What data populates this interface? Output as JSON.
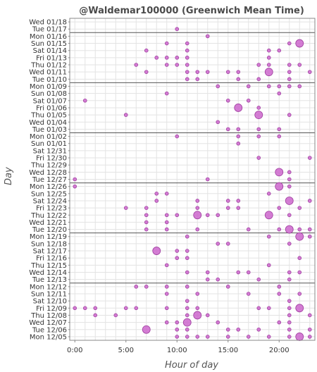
{
  "chart_data": {
    "type": "scatter",
    "title": "@Waldemar100000 (Greenwich Mean Time)",
    "xlabel": "Hour of day",
    "ylabel": "Day",
    "xlim": [
      -0.5,
      23.5
    ],
    "x_ticks": [
      0,
      5,
      10,
      15,
      20
    ],
    "x_tick_labels": [
      "0:00",
      "5:00",
      "10:00",
      "15:00",
      "20:00"
    ],
    "grid": true,
    "marker_color": "#cc66cc",
    "marker_edge_color": "#a040a0",
    "separator_color": "#555555",
    "days": [
      "Wed 01/18",
      "Tue 01/17",
      "Mon 01/16",
      "Sun 01/15",
      "Sat 01/14",
      "Fri 01/13",
      "Thu 01/12",
      "Wed 01/11",
      "Tue 01/10",
      "Mon 01/09",
      "Sun 01/08",
      "Sat 01/07",
      "Fri 01/06",
      "Thu 01/05",
      "Wed 01/04",
      "Tue 01/03",
      "Mon 01/02",
      "Sun 01/01",
      "Sat 12/31",
      "Fri 12/30",
      "Thu 12/29",
      "Wed 12/28",
      "Tue 12/27",
      "Mon 12/26",
      "Sun 12/25",
      "Sat 12/24",
      "Fri 12/23",
      "Thu 12/22",
      "Wed 12/21",
      "Tue 12/20",
      "Mon 12/19",
      "Sun 12/18",
      "Sat 12/17",
      "Fri 12/16",
      "Thu 12/15",
      "Wed 12/14",
      "Tue 12/13",
      "Mon 12/12",
      "Sun 12/11",
      "Sat 12/10",
      "Fri 12/09",
      "Thu 12/08",
      "Wed 12/07",
      "Tue 12/06",
      "Mon 12/05"
    ],
    "week_separators_after": [
      "Mon 01/16",
      "Mon 01/09",
      "Mon 01/02",
      "Mon 12/26",
      "Mon 12/19",
      "Mon 12/12"
    ],
    "points": [
      {
        "day": "Tue 01/17",
        "hour": 10,
        "count": 1
      },
      {
        "day": "Mon 01/16",
        "hour": 13,
        "count": 1
      },
      {
        "day": "Sun 01/15",
        "hour": 9,
        "count": 1
      },
      {
        "day": "Sun 01/15",
        "hour": 11,
        "count": 1
      },
      {
        "day": "Sun 01/15",
        "hour": 21,
        "count": 1
      },
      {
        "day": "Sun 01/15",
        "hour": 22,
        "count": 3
      },
      {
        "day": "Sat 01/14",
        "hour": 7,
        "count": 1
      },
      {
        "day": "Sat 01/14",
        "hour": 11,
        "count": 1
      },
      {
        "day": "Sat 01/14",
        "hour": 19,
        "count": 1
      },
      {
        "day": "Sat 01/14",
        "hour": 20,
        "count": 1
      },
      {
        "day": "Fri 01/13",
        "hour": 8,
        "count": 1
      },
      {
        "day": "Fri 01/13",
        "hour": 9,
        "count": 1
      },
      {
        "day": "Fri 01/13",
        "hour": 10,
        "count": 1
      },
      {
        "day": "Fri 01/13",
        "hour": 11,
        "count": 1
      },
      {
        "day": "Fri 01/13",
        "hour": 19,
        "count": 1
      },
      {
        "day": "Thu 01/12",
        "hour": 6,
        "count": 1
      },
      {
        "day": "Thu 01/12",
        "hour": 9,
        "count": 1
      },
      {
        "day": "Thu 01/12",
        "hour": 10,
        "count": 1
      },
      {
        "day": "Thu 01/12",
        "hour": 11,
        "count": 1
      },
      {
        "day": "Thu 01/12",
        "hour": 18,
        "count": 1
      },
      {
        "day": "Thu 01/12",
        "hour": 19,
        "count": 1
      },
      {
        "day": "Thu 01/12",
        "hour": 21,
        "count": 1
      },
      {
        "day": "Thu 01/12",
        "hour": 22,
        "count": 1
      },
      {
        "day": "Wed 01/11",
        "hour": 7,
        "count": 1
      },
      {
        "day": "Wed 01/11",
        "hour": 11,
        "count": 1
      },
      {
        "day": "Wed 01/11",
        "hour": 12,
        "count": 1
      },
      {
        "day": "Wed 01/11",
        "hour": 13,
        "count": 1
      },
      {
        "day": "Wed 01/11",
        "hour": 15,
        "count": 1
      },
      {
        "day": "Wed 01/11",
        "hour": 16,
        "count": 1
      },
      {
        "day": "Wed 01/11",
        "hour": 19,
        "count": 3
      },
      {
        "day": "Wed 01/11",
        "hour": 21,
        "count": 1
      },
      {
        "day": "Wed 01/11",
        "hour": 23,
        "count": 1
      },
      {
        "day": "Tue 01/10",
        "hour": 11,
        "count": 1
      },
      {
        "day": "Tue 01/10",
        "hour": 12,
        "count": 1
      },
      {
        "day": "Tue 01/10",
        "hour": 16,
        "count": 1
      },
      {
        "day": "Tue 01/10",
        "hour": 18,
        "count": 1
      },
      {
        "day": "Tue 01/10",
        "hour": 21,
        "count": 1
      },
      {
        "day": "Mon 01/09",
        "hour": 14,
        "count": 1
      },
      {
        "day": "Mon 01/09",
        "hour": 17,
        "count": 1
      },
      {
        "day": "Mon 01/09",
        "hour": 19,
        "count": 1
      },
      {
        "day": "Mon 01/09",
        "hour": 20,
        "count": 1
      },
      {
        "day": "Mon 01/09",
        "hour": 21,
        "count": 1
      },
      {
        "day": "Mon 01/09",
        "hour": 22,
        "count": 1
      },
      {
        "day": "Sun 01/08",
        "hour": 9,
        "count": 1
      },
      {
        "day": "Sun 01/08",
        "hour": 20,
        "count": 1
      },
      {
        "day": "Sat 01/07",
        "hour": 1,
        "count": 1
      },
      {
        "day": "Sat 01/07",
        "hour": 15,
        "count": 1
      },
      {
        "day": "Sat 01/07",
        "hour": 17,
        "count": 1
      },
      {
        "day": "Fri 01/06",
        "hour": 16,
        "count": 3
      },
      {
        "day": "Fri 01/06",
        "hour": 18,
        "count": 1
      },
      {
        "day": "Thu 01/05",
        "hour": 5,
        "count": 1
      },
      {
        "day": "Thu 01/05",
        "hour": 18,
        "count": 3
      },
      {
        "day": "Thu 01/05",
        "hour": 21,
        "count": 1
      },
      {
        "day": "Wed 01/04",
        "hour": 14,
        "count": 1
      },
      {
        "day": "Tue 01/03",
        "hour": 15,
        "count": 1
      },
      {
        "day": "Tue 01/03",
        "hour": 16,
        "count": 1
      },
      {
        "day": "Tue 01/03",
        "hour": 18,
        "count": 1
      },
      {
        "day": "Tue 01/03",
        "hour": 20,
        "count": 1
      },
      {
        "day": "Mon 01/02",
        "hour": 10,
        "count": 1
      },
      {
        "day": "Mon 01/02",
        "hour": 16,
        "count": 1
      },
      {
        "day": "Mon 01/02",
        "hour": 18,
        "count": 1
      },
      {
        "day": "Mon 01/02",
        "hour": 20,
        "count": 1
      },
      {
        "day": "Sun 01/01",
        "hour": 16,
        "count": 1
      },
      {
        "day": "Fri 12/30",
        "hour": 18,
        "count": 1
      },
      {
        "day": "Fri 12/30",
        "hour": 23,
        "count": 1
      },
      {
        "day": "Wed 12/28",
        "hour": 20,
        "count": 3
      },
      {
        "day": "Wed 12/28",
        "hour": 21,
        "count": 1
      },
      {
        "day": "Tue 12/27",
        "hour": 0,
        "count": 1
      },
      {
        "day": "Tue 12/27",
        "hour": 13,
        "count": 1
      },
      {
        "day": "Tue 12/27",
        "hour": 21,
        "count": 1
      },
      {
        "day": "Mon 12/26",
        "hour": 0,
        "count": 1
      },
      {
        "day": "Mon 12/26",
        "hour": 20,
        "count": 3
      },
      {
        "day": "Mon 12/26",
        "hour": 21,
        "count": 1
      },
      {
        "day": "Sun 12/25",
        "hour": 8,
        "count": 1
      },
      {
        "day": "Sun 12/25",
        "hour": 9,
        "count": 1
      },
      {
        "day": "Sun 12/25",
        "hour": 19,
        "count": 1
      },
      {
        "day": "Sat 12/24",
        "hour": 8,
        "count": 1
      },
      {
        "day": "Sat 12/24",
        "hour": 12,
        "count": 1
      },
      {
        "day": "Sat 12/24",
        "hour": 15,
        "count": 1
      },
      {
        "day": "Sat 12/24",
        "hour": 16,
        "count": 1
      },
      {
        "day": "Sat 12/24",
        "hour": 21,
        "count": 3
      },
      {
        "day": "Sat 12/24",
        "hour": 23,
        "count": 1
      },
      {
        "day": "Fri 12/23",
        "hour": 5,
        "count": 1
      },
      {
        "day": "Fri 12/23",
        "hour": 7,
        "count": 1
      },
      {
        "day": "Fri 12/23",
        "hour": 12,
        "count": 1
      },
      {
        "day": "Fri 12/23",
        "hour": 15,
        "count": 1
      },
      {
        "day": "Fri 12/23",
        "hour": 16,
        "count": 1
      },
      {
        "day": "Fri 12/23",
        "hour": 20,
        "count": 1
      },
      {
        "day": "Fri 12/23",
        "hour": 22,
        "count": 1
      },
      {
        "day": "Thu 12/22",
        "hour": 7,
        "count": 1
      },
      {
        "day": "Thu 12/22",
        "hour": 9,
        "count": 1
      },
      {
        "day": "Thu 12/22",
        "hour": 10,
        "count": 1
      },
      {
        "day": "Thu 12/22",
        "hour": 12,
        "count": 3
      },
      {
        "day": "Thu 12/22",
        "hour": 13,
        "count": 1
      },
      {
        "day": "Thu 12/22",
        "hour": 14,
        "count": 1
      },
      {
        "day": "Thu 12/22",
        "hour": 19,
        "count": 3
      },
      {
        "day": "Thu 12/22",
        "hour": 21,
        "count": 1
      },
      {
        "day": "Wed 12/21",
        "hour": 7,
        "count": 1
      },
      {
        "day": "Wed 12/21",
        "hour": 9,
        "count": 1
      },
      {
        "day": "Tue 12/20",
        "hour": 7,
        "count": 1
      },
      {
        "day": "Tue 12/20",
        "hour": 9,
        "count": 1
      },
      {
        "day": "Tue 12/20",
        "hour": 12,
        "count": 1
      },
      {
        "day": "Tue 12/20",
        "hour": 17,
        "count": 1
      },
      {
        "day": "Tue 12/20",
        "hour": 20,
        "count": 1
      },
      {
        "day": "Tue 12/20",
        "hour": 21,
        "count": 3
      },
      {
        "day": "Tue 12/20",
        "hour": 22,
        "count": 1
      },
      {
        "day": "Tue 12/20",
        "hour": 23,
        "count": 1
      },
      {
        "day": "Mon 12/19",
        "hour": 11,
        "count": 1
      },
      {
        "day": "Mon 12/19",
        "hour": 19,
        "count": 1
      },
      {
        "day": "Mon 12/19",
        "hour": 22,
        "count": 3
      },
      {
        "day": "Mon 12/19",
        "hour": 23,
        "count": 1
      },
      {
        "day": "Sun 12/18",
        "hour": 14,
        "count": 1
      },
      {
        "day": "Sun 12/18",
        "hour": 15,
        "count": 1
      },
      {
        "day": "Sun 12/18",
        "hour": 21,
        "count": 1
      },
      {
        "day": "Sat 12/17",
        "hour": 8,
        "count": 3
      },
      {
        "day": "Sat 12/17",
        "hour": 10,
        "count": 1
      },
      {
        "day": "Sat 12/17",
        "hour": 11,
        "count": 1
      },
      {
        "day": "Fri 12/16",
        "hour": 10,
        "count": 1
      },
      {
        "day": "Fri 12/16",
        "hour": 11,
        "count": 1
      },
      {
        "day": "Fri 12/16",
        "hour": 22,
        "count": 1
      },
      {
        "day": "Thu 12/15",
        "hour": 9,
        "count": 1
      },
      {
        "day": "Thu 12/15",
        "hour": 19,
        "count": 1
      },
      {
        "day": "Wed 12/14",
        "hour": 11,
        "count": 1
      },
      {
        "day": "Wed 12/14",
        "hour": 13,
        "count": 1
      },
      {
        "day": "Wed 12/14",
        "hour": 16,
        "count": 1
      },
      {
        "day": "Wed 12/14",
        "hour": 17,
        "count": 1
      },
      {
        "day": "Wed 12/14",
        "hour": 21,
        "count": 1
      },
      {
        "day": "Wed 12/14",
        "hour": 22,
        "count": 1
      },
      {
        "day": "Tue 12/13",
        "hour": 13,
        "count": 1
      },
      {
        "day": "Tue 12/13",
        "hour": 14,
        "count": 1
      },
      {
        "day": "Tue 12/13",
        "hour": 18,
        "count": 1
      },
      {
        "day": "Tue 12/13",
        "hour": 21,
        "count": 1
      },
      {
        "day": "Mon 12/12",
        "hour": 6,
        "count": 1
      },
      {
        "day": "Mon 12/12",
        "hour": 7,
        "count": 1
      },
      {
        "day": "Mon 12/12",
        "hour": 9,
        "count": 1
      },
      {
        "day": "Mon 12/12",
        "hour": 11,
        "count": 1
      },
      {
        "day": "Mon 12/12",
        "hour": 15,
        "count": 1
      },
      {
        "day": "Mon 12/12",
        "hour": 20,
        "count": 1
      },
      {
        "day": "Sun 12/11",
        "hour": 9,
        "count": 1
      },
      {
        "day": "Sun 12/11",
        "hour": 12,
        "count": 1
      },
      {
        "day": "Sun 12/11",
        "hour": 17,
        "count": 1
      },
      {
        "day": "Sun 12/11",
        "hour": 20,
        "count": 1
      },
      {
        "day": "Sun 12/11",
        "hour": 22,
        "count": 1
      },
      {
        "day": "Sat 12/10",
        "hour": 11,
        "count": 1
      },
      {
        "day": "Sat 12/10",
        "hour": 21,
        "count": 1
      },
      {
        "day": "Fri 12/09",
        "hour": 0,
        "count": 1
      },
      {
        "day": "Fri 12/09",
        "hour": 1,
        "count": 1
      },
      {
        "day": "Fri 12/09",
        "hour": 2,
        "count": 1
      },
      {
        "day": "Fri 12/09",
        "hour": 5,
        "count": 1
      },
      {
        "day": "Fri 12/09",
        "hour": 6,
        "count": 1
      },
      {
        "day": "Fri 12/09",
        "hour": 9,
        "count": 1
      },
      {
        "day": "Fri 12/09",
        "hour": 11,
        "count": 1
      },
      {
        "day": "Fri 12/09",
        "hour": 12,
        "count": 1
      },
      {
        "day": "Fri 12/09",
        "hour": 18,
        "count": 1
      },
      {
        "day": "Fri 12/09",
        "hour": 19,
        "count": 1
      },
      {
        "day": "Fri 12/09",
        "hour": 21,
        "count": 1
      },
      {
        "day": "Fri 12/09",
        "hour": 22,
        "count": 3
      },
      {
        "day": "Thu 12/08",
        "hour": 2,
        "count": 1
      },
      {
        "day": "Thu 12/08",
        "hour": 4,
        "count": 1
      },
      {
        "day": "Thu 12/08",
        "hour": 11,
        "count": 1
      },
      {
        "day": "Thu 12/08",
        "hour": 12,
        "count": 3
      },
      {
        "day": "Thu 12/08",
        "hour": 13,
        "count": 1
      },
      {
        "day": "Thu 12/08",
        "hour": 21,
        "count": 1
      },
      {
        "day": "Thu 12/08",
        "hour": 23,
        "count": 1
      },
      {
        "day": "Wed 12/07",
        "hour": 9,
        "count": 1
      },
      {
        "day": "Wed 12/07",
        "hour": 10,
        "count": 1
      },
      {
        "day": "Wed 12/07",
        "hour": 11,
        "count": 3
      },
      {
        "day": "Wed 12/07",
        "hour": 14,
        "count": 1
      },
      {
        "day": "Wed 12/07",
        "hour": 20,
        "count": 1
      },
      {
        "day": "Wed 12/07",
        "hour": 21,
        "count": 1
      },
      {
        "day": "Tue 12/06",
        "hour": 7,
        "count": 3
      },
      {
        "day": "Tue 12/06",
        "hour": 10,
        "count": 1
      },
      {
        "day": "Tue 12/06",
        "hour": 11,
        "count": 1
      },
      {
        "day": "Tue 12/06",
        "hour": 15,
        "count": 1
      },
      {
        "day": "Tue 12/06",
        "hour": 16,
        "count": 1
      },
      {
        "day": "Tue 12/06",
        "hour": 18,
        "count": 1
      },
      {
        "day": "Tue 12/06",
        "hour": 21,
        "count": 1
      },
      {
        "day": "Tue 12/06",
        "hour": 23,
        "count": 1
      },
      {
        "day": "Mon 12/05",
        "hour": 10,
        "count": 1
      },
      {
        "day": "Mon 12/05",
        "hour": 11,
        "count": 1
      },
      {
        "day": "Mon 12/05",
        "hour": 12,
        "count": 1
      },
      {
        "day": "Mon 12/05",
        "hour": 13,
        "count": 1
      },
      {
        "day": "Mon 12/05",
        "hour": 15,
        "count": 1
      },
      {
        "day": "Mon 12/05",
        "hour": 17,
        "count": 1
      },
      {
        "day": "Mon 12/05",
        "hour": 19,
        "count": 1
      },
      {
        "day": "Mon 12/05",
        "hour": 21,
        "count": 1
      },
      {
        "day": "Mon 12/05",
        "hour": 22,
        "count": 3
      },
      {
        "day": "Mon 12/05",
        "hour": 23,
        "count": 1
      }
    ]
  }
}
